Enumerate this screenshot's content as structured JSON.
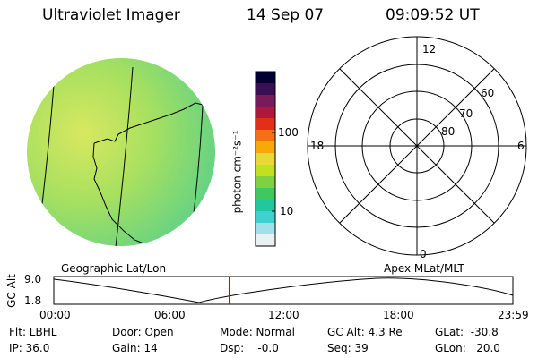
{
  "header": {
    "instrument": "Ultraviolet Imager",
    "date": "14 Sep 07",
    "time": "09:09:52 UT"
  },
  "colorbar": {
    "label": "photon cm⁻²s⁻¹",
    "ticks": [
      "100",
      "10"
    ],
    "colors": [
      "#000030",
      "#3a0e52",
      "#7a1a5a",
      "#b01838",
      "#e03018",
      "#f47010",
      "#f8a808",
      "#e8d838",
      "#c0e020",
      "#80d040",
      "#40c860",
      "#20c8a0",
      "#40d0d0",
      "#a0e0e8",
      "#e8f0f0"
    ]
  },
  "polar": {
    "mlt_labels": {
      "top": "12",
      "left": "18",
      "right": "6",
      "bottom": "0"
    },
    "lat_labels": [
      "60",
      "70",
      "80"
    ]
  },
  "map_labels": {
    "left": "Geographic Lat/Lon",
    "right": "Apex MLat/MLT"
  },
  "timeline": {
    "ylabel": "GC Alt",
    "y_ticks": [
      "9.0",
      "1.8"
    ],
    "x_ticks": [
      "00:00",
      "06:00",
      "12:00",
      "18:00",
      "23:59"
    ],
    "current_time_fraction": 0.3818
  },
  "info": {
    "filter": "Flt: LBHL",
    "ip": "IP: 36.0",
    "door": "Door: Open",
    "gain": "Gain: 14",
    "mode": "Mode: Normal",
    "dsp": "Dsp:    -0.0",
    "gc_alt": "GC Alt: 4.3 Re",
    "seq": "Seq: 39",
    "glat": "GLat:  -30.8",
    "glon": "GLon:   20.0"
  }
}
